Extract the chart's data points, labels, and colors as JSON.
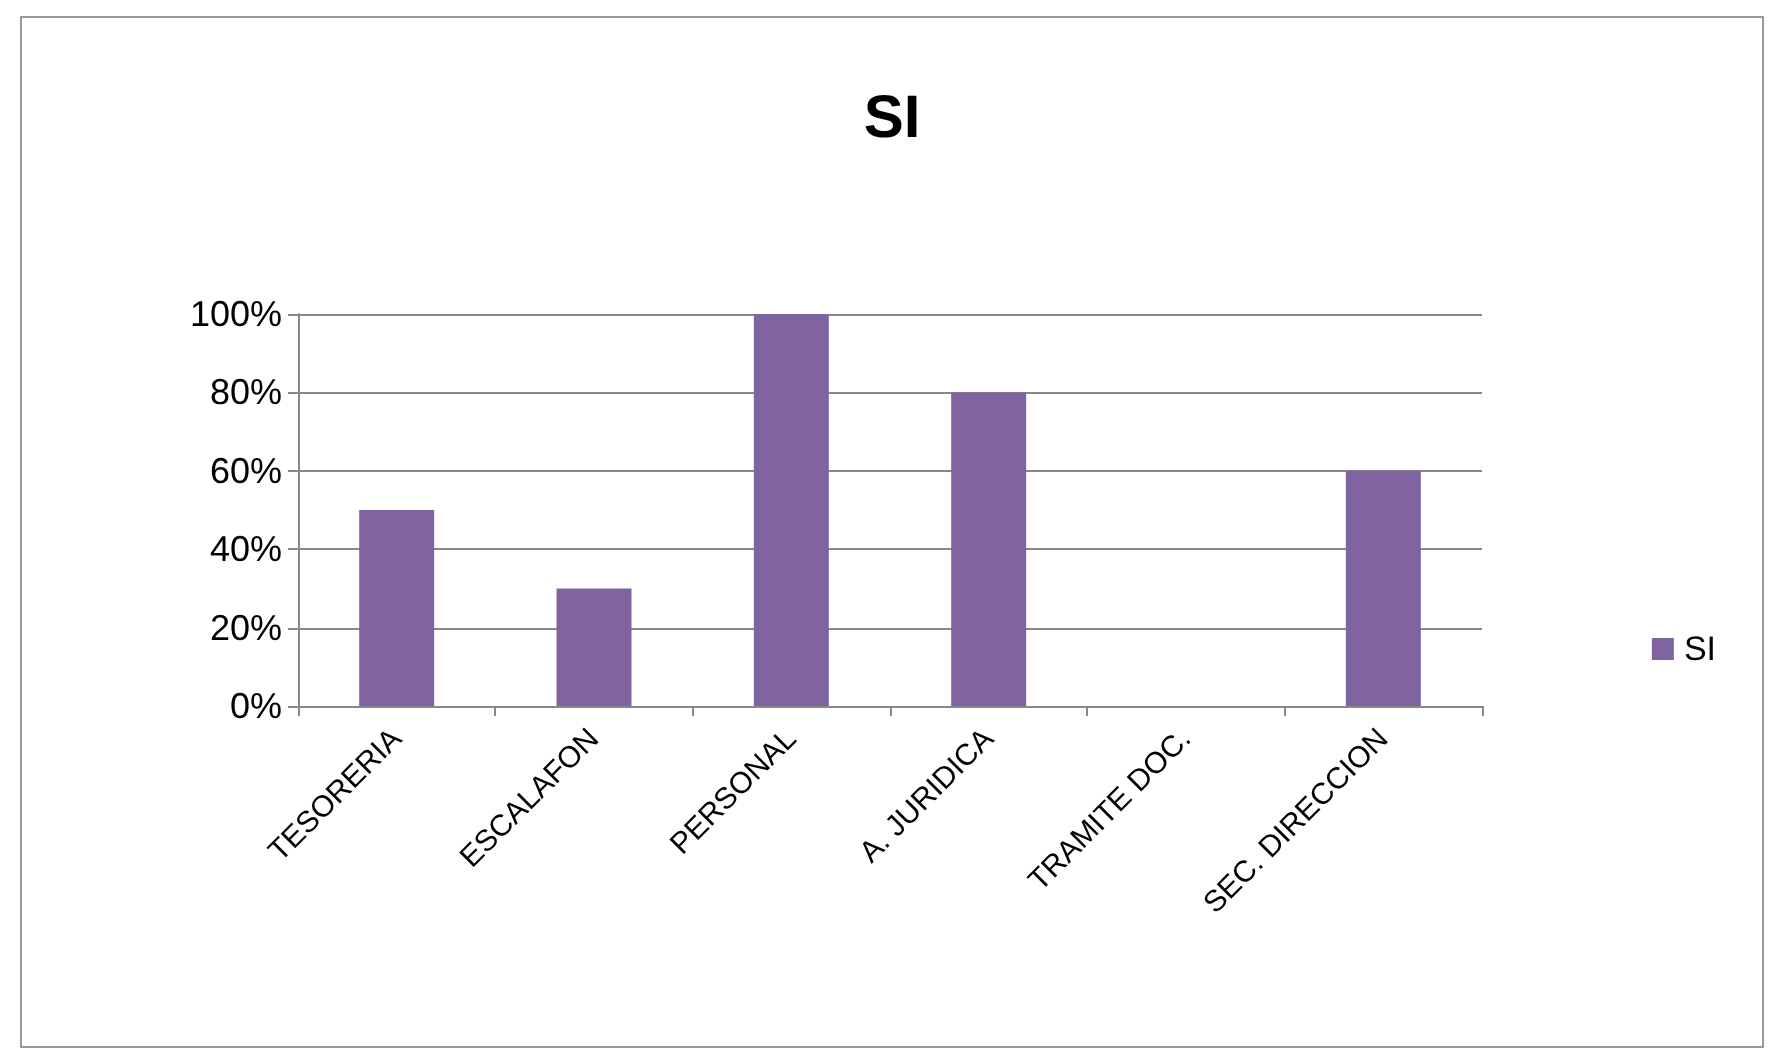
{
  "chart_data": {
    "type": "bar",
    "title": "SI",
    "categories": [
      "TESORERIA",
      "ESCALAFON",
      "PERSONAL",
      "A. JURIDICA",
      "TRAMITE DOC.",
      "SEC. DIRECCION"
    ],
    "series": [
      {
        "name": "SI",
        "color": "#8064a2",
        "values": [
          50,
          30,
          100,
          80,
          0,
          60
        ]
      }
    ],
    "ylim": [
      0,
      100
    ],
    "yticks": [
      {
        "value": 0,
        "label": "0%"
      },
      {
        "value": 20,
        "label": "20%"
      },
      {
        "value": 40,
        "label": "40%"
      },
      {
        "value": 60,
        "label": "60%"
      },
      {
        "value": 80,
        "label": "80%"
      },
      {
        "value": 100,
        "label": "100%"
      }
    ],
    "grid": "y",
    "legend": "right"
  }
}
